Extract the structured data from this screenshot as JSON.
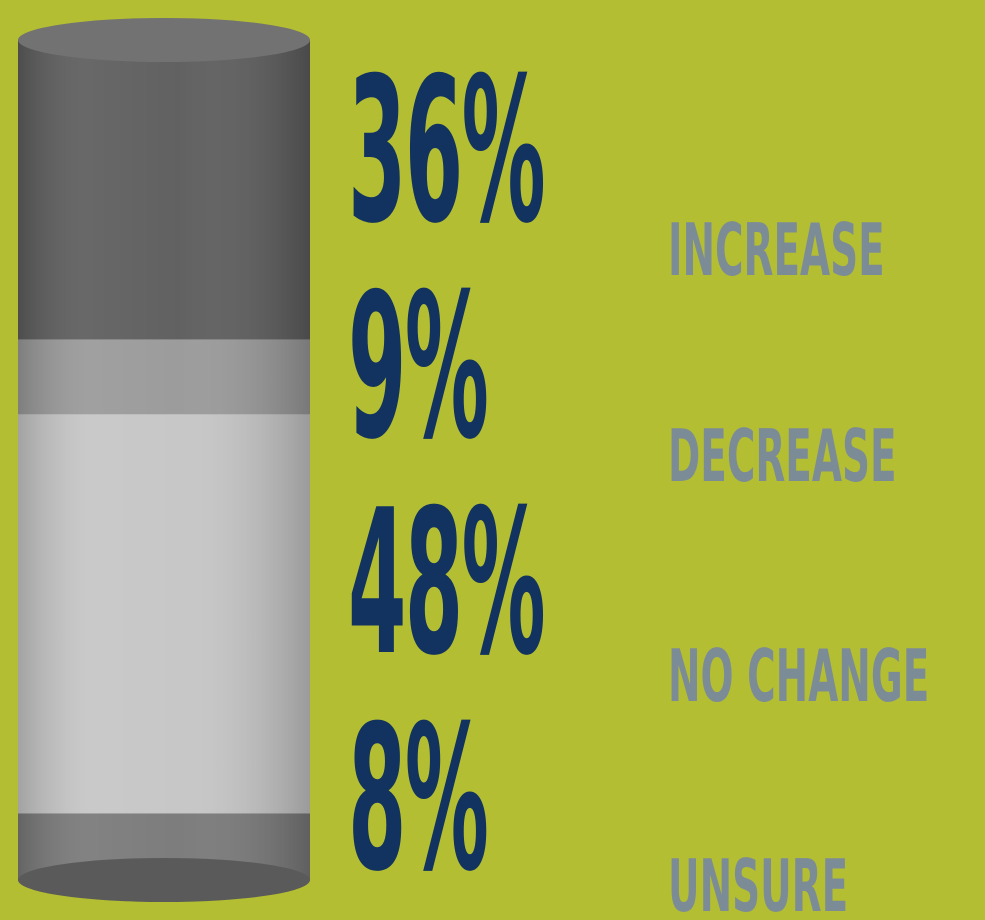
{
  "chart_data": {
    "type": "bar",
    "stacked": true,
    "categories": [
      "INCREASE",
      "DECREASE",
      "NO CHANGE",
      "UNSURE"
    ],
    "values": [
      36,
      9,
      48,
      8
    ],
    "value_labels": [
      "36%",
      "9%",
      "48%",
      "8%"
    ],
    "colors": [
      "#5e5e5e",
      "#9a9a9a",
      "#c6c6c6",
      "#7a7a7a"
    ],
    "title": "",
    "xlabel": "",
    "ylabel": ""
  },
  "colors": {
    "background": "#b4be32",
    "percent_text": "#12335f",
    "label_text": "#7c8c96"
  }
}
